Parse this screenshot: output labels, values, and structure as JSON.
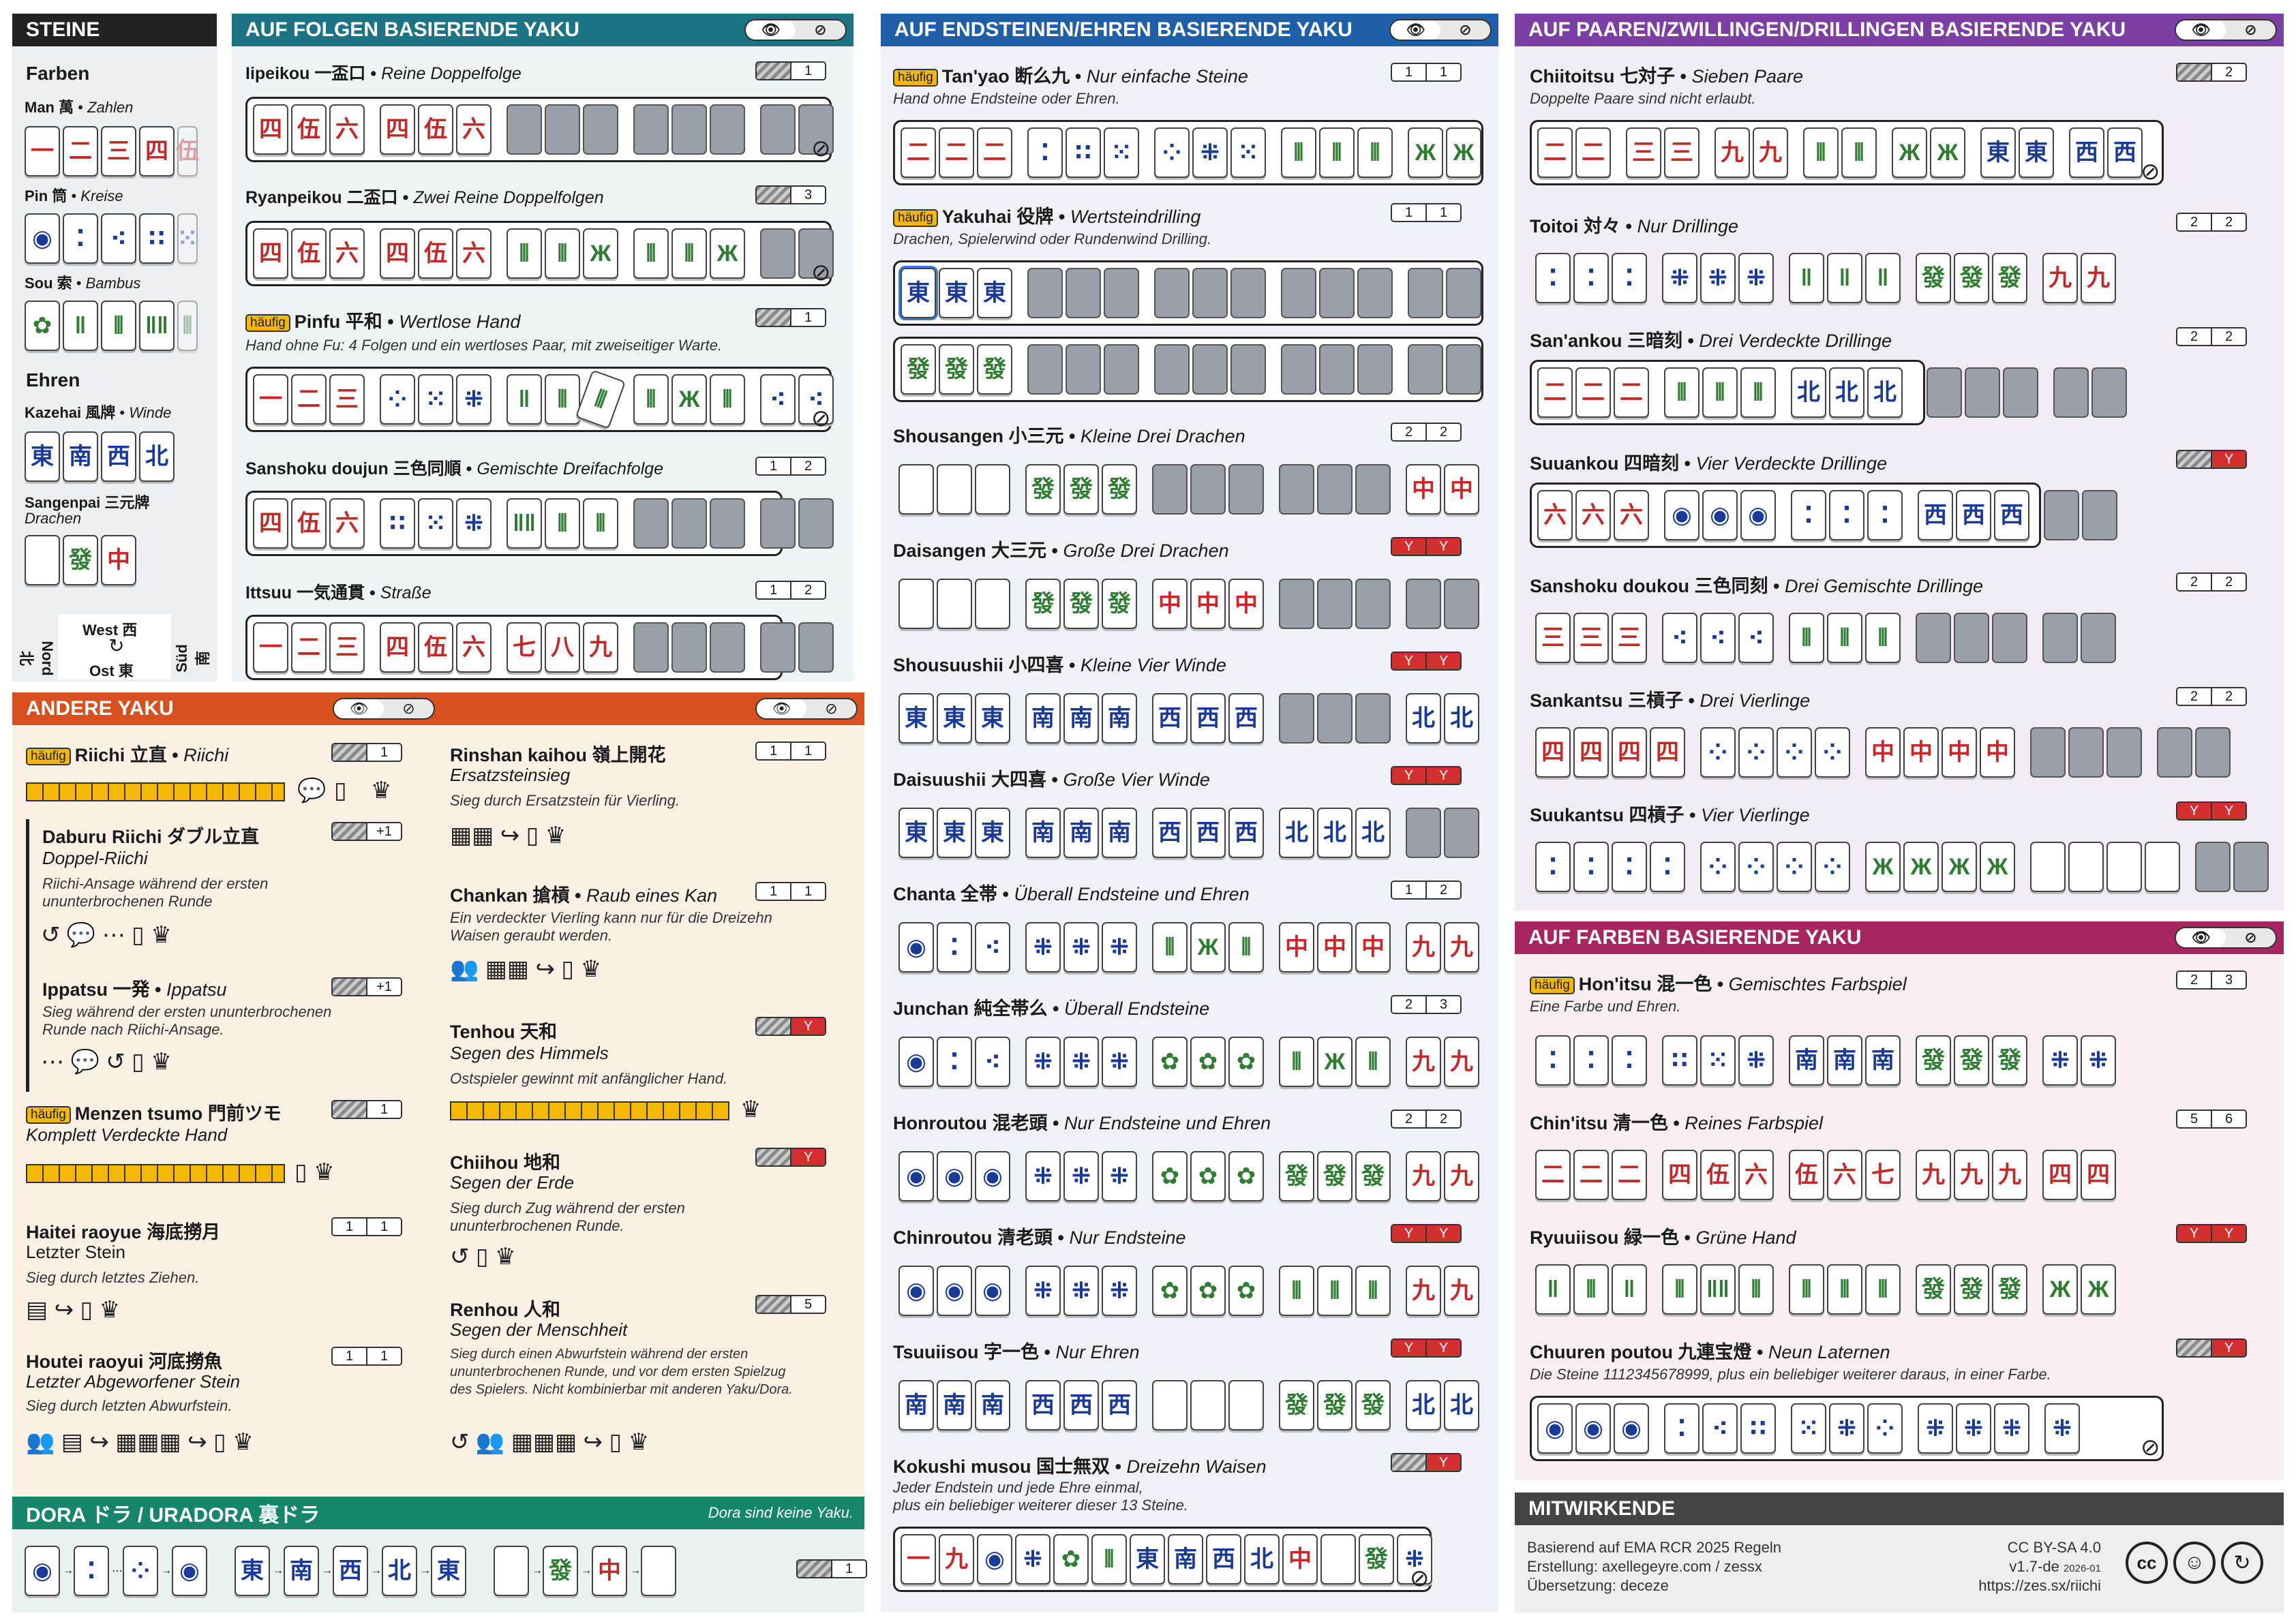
{
  "colors": {
    "folgen": "#1b7383",
    "endsteine": "#1f5ea8",
    "paare": "#7b3fa6",
    "farben": "#a8265f",
    "andere": "#d9501f",
    "dora": "#16866a",
    "steine": "#222222",
    "mitw": "#444444"
  },
  "steine": {
    "title": "STEINE",
    "farben": "Farben",
    "man": "Man 萬",
    "man_sub": "Zahlen",
    "pin": "Pin 筒",
    "pin_sub": "Kreise",
    "sou": "Sou 索",
    "sou_sub": "Bambus",
    "ehren": "Ehren",
    "kaze": "Kazehai 風牌",
    "kaze_sub": "Winde",
    "sangen": "Sangenpai 三元牌",
    "sangen_sub": "Drachen",
    "west": "West 西",
    "ost": "Ost 東",
    "nord": "Nord 北",
    "sued": "Süd 南"
  },
  "folgen": {
    "title": "AUF FOLGEN BASIERENDE YAKU",
    "iipeikou": {
      "name": "Iipeikou 一盃口",
      "sub": "Reine Doppelfolge",
      "han": "1"
    },
    "ryanpeikou": {
      "name": "Ryanpeikou 二盃口",
      "sub": "Zwei Reine Doppelfolgen",
      "han": "3"
    },
    "pinfu": {
      "tag": "häufig",
      "name": "Pinfu 平和",
      "sub": "Wertlose Hand",
      "desc": "Hand ohne Fu: 4 Folgen und ein wertloses Paar, mit zweiseitiger Warte.",
      "han": "1"
    },
    "sanshoku": {
      "name": "Sanshoku doujun 三色同順",
      "sub": "Gemischte Dreifachfolge",
      "han1": "1",
      "han2": "2"
    },
    "ittsuu": {
      "name": "Ittsuu 一気通貫",
      "sub": "Straße",
      "han1": "1",
      "han2": "2"
    }
  },
  "endsteine": {
    "title": "AUF ENDSTEINEN/EHREN BASIERENDE YAKU",
    "tanyao": {
      "tag": "häufig",
      "name": "Tan'yao 断么九",
      "sub": "Nur einfache Steine",
      "desc": "Hand ohne Endsteine oder Ehren.",
      "han1": "1",
      "han2": "1"
    },
    "yakuhai": {
      "tag": "häufig",
      "name": "Yakuhai 役牌",
      "sub": "Wertsteindrilling",
      "desc": "Drachen, Spielerwind oder Rundenwind Drilling.",
      "han1": "1",
      "han2": "1"
    },
    "shousangen": {
      "name": "Shousangen 小三元",
      "sub": "Kleine Drei Drachen",
      "han1": "2",
      "han2": "2"
    },
    "daisangen": {
      "name": "Daisangen 大三元",
      "sub": "Große Drei Drachen",
      "han1": "Y",
      "han2": "Y"
    },
    "shousuushii": {
      "name": "Shousuushii 小四喜",
      "sub": "Kleine Vier Winde",
      "han1": "Y",
      "han2": "Y"
    },
    "daisuushii": {
      "name": "Daisuushii 大四喜",
      "sub": "Große Vier Winde",
      "han1": "Y",
      "han2": "Y"
    },
    "chanta": {
      "name": "Chanta 全帯",
      "sub": "Überall Endsteine und Ehren",
      "han1": "1",
      "han2": "2"
    },
    "junchan": {
      "name": "Junchan 純全帯么",
      "sub": "Überall Endsteine",
      "han1": "2",
      "han2": "3"
    },
    "honroutou": {
      "name": "Honroutou 混老頭",
      "sub": "Nur Endsteine und Ehren",
      "han1": "2",
      "han2": "2"
    },
    "chinroutou": {
      "name": "Chinroutou 清老頭",
      "sub": "Nur Endsteine",
      "han1": "Y",
      "han2": "Y"
    },
    "tsuuiisou": {
      "name": "Tsuuiisou 字一色",
      "sub": "Nur Ehren",
      "han1": "Y",
      "han2": "Y"
    },
    "kokushi": {
      "name": "Kokushi musou 国士無双",
      "sub": "Dreizehn Waisen",
      "desc1": "Jeder Endstein und jede Ehre einmal,",
      "desc2": "plus ein beliebiger weiterer dieser 13 Steine.",
      "han": "Y"
    }
  },
  "paare": {
    "title": "AUF PAAREN/ZWILLINGEN/DRILLINGEN BASIERENDE YAKU",
    "chiitoitsu": {
      "name": "Chiitoitsu 七対子",
      "sub": "Sieben Paare",
      "desc": "Doppelte Paare sind nicht erlaubt.",
      "han": "2"
    },
    "toitoi": {
      "name": "Toitoi 対々",
      "sub": "Nur Drillinge",
      "han1": "2",
      "han2": "2"
    },
    "sanankou": {
      "name": "San'ankou 三暗刻",
      "sub": "Drei Verdeckte Drillinge",
      "han1": "2",
      "han2": "2"
    },
    "suuankou": {
      "name": "Suuankou 四暗刻",
      "sub": "Vier Verdeckte Drillinge",
      "han": "Y"
    },
    "sanshokudoukou": {
      "name": "Sanshoku doukou 三色同刻",
      "sub": "Drei Gemischte Drillinge",
      "han1": "2",
      "han2": "2"
    },
    "sankantsu": {
      "name": "Sankantsu 三槓子",
      "sub": "Drei Vierlinge",
      "han1": "2",
      "han2": "2"
    },
    "suukantsu": {
      "name": "Suukantsu 四槓子",
      "sub": "Vier Vierlinge",
      "han1": "Y",
      "han2": "Y"
    }
  },
  "farben": {
    "title": "AUF FARBEN BASIERENDE YAKU",
    "honitsu": {
      "tag": "häufig",
      "name": "Hon'itsu 混一色",
      "sub": "Gemischtes Farbspiel",
      "desc": "Eine Farbe und Ehren.",
      "han1": "2",
      "han2": "3"
    },
    "chinitsu": {
      "name": "Chin'itsu 清一色",
      "sub": "Reines Farbspiel",
      "han1": "5",
      "han2": "6"
    },
    "ryuuiisou": {
      "name": "Ryuuiisou 緑一色",
      "sub": "Grüne Hand",
      "han1": "Y",
      "han2": "Y"
    },
    "chuuren": {
      "name": "Chuuren poutou 九連宝燈",
      "sub": "Neun Laternen",
      "desc": "Die Steine 1112345678999, plus ein beliebiger weiterer daraus, in einer Farbe.",
      "han": "Y"
    }
  },
  "andere": {
    "title": "ANDERE YAKU",
    "riichi": {
      "tag": "häufig",
      "name": "Riichi 立直",
      "sub": "Riichi",
      "han": "1"
    },
    "daburu": {
      "name": "Daburu Riichi ダブル立直",
      "sub": "Doppel-Riichi",
      "desc1": "Riichi-Ansage während der ersten",
      "desc2": "ununterbrochenen Runde",
      "han": "+1"
    },
    "ippatsu": {
      "name": "Ippatsu 一発",
      "sub": "Ippatsu",
      "desc1": "Sieg während der ersten ununterbrochenen",
      "desc2": "Runde nach Riichi-Ansage.",
      "han": "+1"
    },
    "menzen": {
      "tag": "häufig",
      "name": "Menzen tsumo 門前ツモ",
      "sub": "Komplett Verdeckte Hand",
      "han": "1"
    },
    "haitei": {
      "name": "Haitei raoyue 海底撈月",
      "sub": "Letzter Stein",
      "desc": "Sieg durch letztes Ziehen.",
      "han1": "1",
      "han2": "1"
    },
    "houtei": {
      "name": "Houtei raoyui 河底撈魚",
      "sub": "Letzter Abgeworfener Stein",
      "desc": "Sieg durch letzten Abwurfstein.",
      "han1": "1",
      "han2": "1"
    },
    "rinshan": {
      "name": "Rinshan kaihou 嶺上開花",
      "sub": "Ersatzsteinsieg",
      "desc": "Sieg durch Ersatzstein für Vierling.",
      "han1": "1",
      "han2": "1"
    },
    "chankan": {
      "name": "Chankan 搶槓",
      "sub": "Raub eines Kan",
      "desc1": "Ein verdeckter Vierling kann nur für die Dreizehn",
      "desc2": "Waisen geraubt werden.",
      "han1": "1",
      "han2": "1"
    },
    "tenhou": {
      "name": "Tenhou 天和",
      "sub": "Segen des Himmels",
      "desc": "Ostspieler gewinnt mit anfänglicher Hand.",
      "han": "Y"
    },
    "chiihou": {
      "name": "Chiihou 地和",
      "sub": "Segen der Erde",
      "desc1": "Sieg durch Zug während der ersten",
      "desc2": "ununterbrochenen Runde.",
      "han": "Y"
    },
    "renhou": {
      "name": "Renhou 人和",
      "sub": "Segen der Menschheit",
      "desc1": "Sieg durch einen Abwurfstein während der ersten",
      "desc2": "ununterbrochenen Runde, und vor dem ersten Spielzug",
      "desc3": "des Spielers. Nicht kombinierbar mit anderen Yaku/Dora.",
      "han": "5"
    }
  },
  "dora": {
    "title": "DORA ドラ / URADORA 裏ドラ",
    "note": "Dora sind keine Yaku.",
    "han": "1"
  },
  "mitw": {
    "title": "MITWIRKENDE",
    "l1": "Basierend auf EMA RCR 2025 Regeln",
    "l2": "Erstellung: axellegeyre.com / zessx",
    "l3": "Übersetzung: deceze",
    "r1": "CC BY-SA 4.0",
    "r2": "v1.7-de",
    "r2b": "2026-01",
    "r3": "https://zes.sx/riichi"
  }
}
